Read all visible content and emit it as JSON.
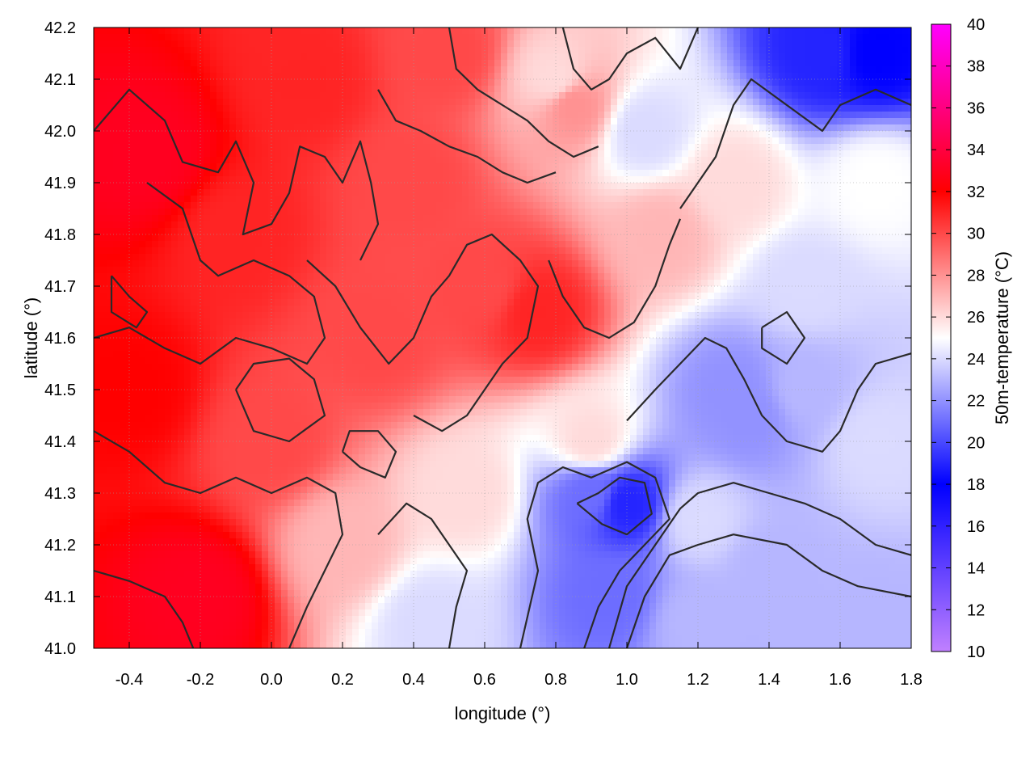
{
  "chart_data": {
    "type": "heatmap",
    "title": "",
    "xlabel": "longitude (°)",
    "ylabel": "latitude (°)",
    "colorbar_label": "50m-temperature (°C)",
    "xlim": [
      -0.5,
      1.8
    ],
    "ylim": [
      41.0,
      42.2
    ],
    "x_ticks": [
      "-0.4",
      "-0.2",
      "0.0",
      "0.2",
      "0.4",
      "0.6",
      "0.8",
      "1.0",
      "1.2",
      "1.4",
      "1.6",
      "1.8"
    ],
    "y_ticks": [
      "41.0",
      "41.1",
      "41.2",
      "41.3",
      "41.4",
      "41.5",
      "41.6",
      "41.7",
      "41.8",
      "41.9",
      "42.0",
      "42.1",
      "42.2"
    ],
    "colorbar_range": [
      10,
      40
    ],
    "colorbar_ticks": [
      "10",
      "12",
      "14",
      "16",
      "18",
      "20",
      "22",
      "24",
      "26",
      "28",
      "30",
      "32",
      "34",
      "36",
      "38",
      "40"
    ],
    "colorscale": [
      {
        "value": 10,
        "color": "#c080ff"
      },
      {
        "value": 18,
        "color": "#0000ff"
      },
      {
        "value": 25,
        "color": "#ffffff"
      },
      {
        "value": 32,
        "color": "#ff0000"
      },
      {
        "value": 40,
        "color": "#ff00ff"
      }
    ],
    "grid": true,
    "contour_color": "#2a2a2a",
    "field_samples": [
      {
        "lon": -0.35,
        "lat": 41.95,
        "t": 33
      },
      {
        "lon": -0.2,
        "lat": 41.1,
        "t": 33
      },
      {
        "lon": -0.4,
        "lat": 41.5,
        "t": 32
      },
      {
        "lon": -0.1,
        "lat": 41.8,
        "t": 31
      },
      {
        "lon": 0.1,
        "lat": 42.1,
        "t": 31
      },
      {
        "lon": 0.4,
        "lat": 41.9,
        "t": 30
      },
      {
        "lon": 0.3,
        "lat": 41.6,
        "t": 30
      },
      {
        "lon": 0.0,
        "lat": 41.4,
        "t": 30
      },
      {
        "lon": 0.6,
        "lat": 41.7,
        "t": 30
      },
      {
        "lon": 0.75,
        "lat": 41.65,
        "t": 31
      },
      {
        "lon": 0.5,
        "lat": 42.15,
        "t": 30
      },
      {
        "lon": 0.85,
        "lat": 42.05,
        "t": 28
      },
      {
        "lon": 0.2,
        "lat": 41.2,
        "t": 27
      },
      {
        "lon": 0.55,
        "lat": 41.3,
        "t": 26
      },
      {
        "lon": 0.45,
        "lat": 41.05,
        "t": 24
      },
      {
        "lon": 0.9,
        "lat": 41.4,
        "t": 26
      },
      {
        "lon": 0.9,
        "lat": 41.3,
        "t": 21
      },
      {
        "lon": 1.0,
        "lat": 41.28,
        "t": 19
      },
      {
        "lon": 0.95,
        "lat": 41.1,
        "t": 21
      },
      {
        "lon": 1.1,
        "lat": 41.8,
        "t": 27
      },
      {
        "lon": 1.05,
        "lat": 42.0,
        "t": 24
      },
      {
        "lon": 0.8,
        "lat": 42.1,
        "t": 26
      },
      {
        "lon": 1.3,
        "lat": 41.5,
        "t": 22
      },
      {
        "lon": 1.35,
        "lat": 41.45,
        "t": 22
      },
      {
        "lon": 1.5,
        "lat": 41.5,
        "t": 23
      },
      {
        "lon": 1.5,
        "lat": 41.7,
        "t": 24
      },
      {
        "lon": 1.3,
        "lat": 41.9,
        "t": 26
      },
      {
        "lon": 1.55,
        "lat": 42.15,
        "t": 19
      },
      {
        "lon": 1.7,
        "lat": 42.15,
        "t": 18
      },
      {
        "lon": 1.7,
        "lat": 41.9,
        "t": 25
      },
      {
        "lon": 1.7,
        "lat": 41.4,
        "t": 24
      },
      {
        "lon": 1.4,
        "lat": 41.15,
        "t": 23
      },
      {
        "lon": 1.7,
        "lat": 41.05,
        "t": 23
      },
      {
        "lon": 1.2,
        "lat": 41.05,
        "t": 23
      },
      {
        "lon": 1.2,
        "lat": 41.25,
        "t": 24
      }
    ],
    "contours": [
      [
        [
          -0.5,
          42.0
        ],
        [
          -0.4,
          42.08
        ],
        [
          -0.3,
          42.02
        ],
        [
          -0.25,
          41.94
        ],
        [
          -0.15,
          41.92
        ],
        [
          -0.1,
          41.98
        ],
        [
          -0.05,
          41.9
        ],
        [
          -0.08,
          41.8
        ],
        [
          0.0,
          41.82
        ],
        [
          0.05,
          41.88
        ],
        [
          0.08,
          41.97
        ],
        [
          0.15,
          41.95
        ],
        [
          0.2,
          41.9
        ],
        [
          0.25,
          41.98
        ],
        [
          0.28,
          41.9
        ],
        [
          0.3,
          41.82
        ],
        [
          0.25,
          41.75
        ]
      ],
      [
        [
          -0.35,
          41.9
        ],
        [
          -0.25,
          41.85
        ],
        [
          -0.2,
          41.75
        ],
        [
          -0.15,
          41.72
        ],
        [
          -0.05,
          41.75
        ],
        [
          0.05,
          41.72
        ],
        [
          0.12,
          41.68
        ],
        [
          0.15,
          41.6
        ],
        [
          0.1,
          41.55
        ],
        [
          0.0,
          41.58
        ],
        [
          -0.1,
          41.6
        ],
        [
          -0.2,
          41.55
        ],
        [
          -0.3,
          41.58
        ],
        [
          -0.4,
          41.62
        ],
        [
          -0.5,
          41.6
        ]
      ],
      [
        [
          0.1,
          41.75
        ],
        [
          0.18,
          41.7
        ],
        [
          0.25,
          41.62
        ],
        [
          0.33,
          41.55
        ],
        [
          0.4,
          41.6
        ],
        [
          0.45,
          41.68
        ],
        [
          0.5,
          41.72
        ],
        [
          0.55,
          41.78
        ],
        [
          0.62,
          41.8
        ],
        [
          0.7,
          41.75
        ],
        [
          0.75,
          41.7
        ],
        [
          0.72,
          41.6
        ],
        [
          0.65,
          41.55
        ],
        [
          0.6,
          41.5
        ],
        [
          0.55,
          41.45
        ],
        [
          0.48,
          41.42
        ],
        [
          0.4,
          41.45
        ]
      ],
      [
        [
          -0.1,
          41.5
        ],
        [
          -0.05,
          41.42
        ],
        [
          0.05,
          41.4
        ],
        [
          0.15,
          41.45
        ],
        [
          0.12,
          41.52
        ],
        [
          0.05,
          41.56
        ],
        [
          -0.05,
          41.55
        ],
        [
          -0.1,
          41.5
        ]
      ],
      [
        [
          -0.5,
          41.42
        ],
        [
          -0.4,
          41.38
        ],
        [
          -0.3,
          41.32
        ],
        [
          -0.2,
          41.3
        ],
        [
          -0.1,
          41.33
        ],
        [
          0.0,
          41.3
        ],
        [
          0.1,
          41.33
        ],
        [
          0.18,
          41.3
        ],
        [
          0.2,
          41.22
        ],
        [
          0.15,
          41.15
        ],
        [
          0.1,
          41.08
        ],
        [
          0.05,
          41.0
        ]
      ],
      [
        [
          -0.5,
          41.15
        ],
        [
          -0.4,
          41.13
        ],
        [
          -0.3,
          41.1
        ],
        [
          -0.25,
          41.05
        ],
        [
          -0.22,
          41.0
        ]
      ],
      [
        [
          0.3,
          41.22
        ],
        [
          0.38,
          41.28
        ],
        [
          0.45,
          41.25
        ],
        [
          0.5,
          41.2
        ],
        [
          0.55,
          41.15
        ],
        [
          0.52,
          41.08
        ],
        [
          0.5,
          41.0
        ]
      ],
      [
        [
          0.7,
          41.0
        ],
        [
          0.75,
          41.15
        ],
        [
          0.72,
          41.25
        ],
        [
          0.75,
          41.32
        ],
        [
          0.82,
          41.35
        ],
        [
          0.9,
          41.33
        ],
        [
          1.0,
          41.36
        ],
        [
          1.08,
          41.33
        ],
        [
          1.12,
          41.25
        ],
        [
          1.05,
          41.2
        ],
        [
          0.98,
          41.15
        ],
        [
          0.92,
          41.08
        ],
        [
          0.88,
          41.0
        ]
      ],
      [
        [
          0.86,
          41.28
        ],
        [
          0.92,
          41.3
        ],
        [
          0.98,
          41.33
        ],
        [
          1.05,
          41.32
        ],
        [
          1.07,
          41.26
        ],
        [
          1.0,
          41.22
        ],
        [
          0.93,
          41.24
        ],
        [
          0.86,
          41.28
        ]
      ],
      [
        [
          0.95,
          41.0
        ],
        [
          1.0,
          41.12
        ],
        [
          1.08,
          41.2
        ],
        [
          1.15,
          41.27
        ],
        [
          1.2,
          41.3
        ],
        [
          1.3,
          41.32
        ],
        [
          1.4,
          41.3
        ],
        [
          1.5,
          41.28
        ],
        [
          1.6,
          41.25
        ],
        [
          1.7,
          41.2
        ],
        [
          1.8,
          41.18
        ]
      ],
      [
        [
          1.0,
          41.0
        ],
        [
          1.05,
          41.1
        ],
        [
          1.12,
          41.18
        ],
        [
          1.2,
          41.2
        ],
        [
          1.3,
          41.22
        ],
        [
          1.45,
          41.2
        ],
        [
          1.55,
          41.15
        ],
        [
          1.65,
          41.12
        ],
        [
          1.8,
          41.1
        ]
      ],
      [
        [
          1.0,
          41.44
        ],
        [
          1.08,
          41.5
        ],
        [
          1.15,
          41.55
        ],
        [
          1.22,
          41.6
        ],
        [
          1.28,
          41.58
        ],
        [
          1.33,
          41.52
        ],
        [
          1.38,
          41.45
        ],
        [
          1.45,
          41.4
        ],
        [
          1.55,
          41.38
        ],
        [
          1.6,
          41.42
        ],
        [
          1.65,
          41.5
        ],
        [
          1.7,
          41.55
        ],
        [
          1.8,
          41.57
        ]
      ],
      [
        [
          1.15,
          41.85
        ],
        [
          1.2,
          41.9
        ],
        [
          1.25,
          41.95
        ],
        [
          1.3,
          42.05
        ],
        [
          1.35,
          42.1
        ],
        [
          1.45,
          42.05
        ],
        [
          1.55,
          42.0
        ],
        [
          1.6,
          42.05
        ],
        [
          1.7,
          42.08
        ],
        [
          1.8,
          42.05
        ]
      ],
      [
        [
          0.82,
          42.2
        ],
        [
          0.85,
          42.12
        ],
        [
          0.9,
          42.08
        ],
        [
          0.95,
          42.1
        ],
        [
          1.0,
          42.15
        ],
        [
          1.08,
          42.18
        ],
        [
          1.15,
          42.12
        ],
        [
          1.2,
          42.2
        ]
      ],
      [
        [
          0.5,
          42.2
        ],
        [
          0.52,
          42.12
        ],
        [
          0.58,
          42.08
        ],
        [
          0.65,
          42.05
        ],
        [
          0.72,
          42.02
        ],
        [
          0.78,
          41.98
        ],
        [
          0.85,
          41.95
        ],
        [
          0.92,
          41.97
        ]
      ],
      [
        [
          0.3,
          42.08
        ],
        [
          0.35,
          42.02
        ],
        [
          0.42,
          42.0
        ],
        [
          0.5,
          41.97
        ],
        [
          0.58,
          41.95
        ],
        [
          0.65,
          41.92
        ],
        [
          0.72,
          41.9
        ],
        [
          0.8,
          41.92
        ]
      ],
      [
        [
          0.78,
          41.75
        ],
        [
          0.82,
          41.68
        ],
        [
          0.88,
          41.62
        ],
        [
          0.95,
          41.6
        ],
        [
          1.02,
          41.63
        ],
        [
          1.08,
          41.7
        ],
        [
          1.12,
          41.78
        ],
        [
          1.15,
          41.83
        ]
      ],
      [
        [
          0.2,
          41.38
        ],
        [
          0.25,
          41.35
        ],
        [
          0.32,
          41.33
        ],
        [
          0.35,
          41.38
        ],
        [
          0.3,
          41.42
        ],
        [
          0.22,
          41.42
        ],
        [
          0.2,
          41.38
        ]
      ],
      [
        [
          1.38,
          41.62
        ],
        [
          1.45,
          41.65
        ],
        [
          1.5,
          41.6
        ],
        [
          1.45,
          41.55
        ],
        [
          1.38,
          41.58
        ],
        [
          1.38,
          41.62
        ]
      ],
      [
        [
          -0.45,
          41.72
        ],
        [
          -0.4,
          41.68
        ],
        [
          -0.35,
          41.65
        ],
        [
          -0.38,
          41.62
        ],
        [
          -0.45,
          41.65
        ],
        [
          -0.45,
          41.72
        ]
      ]
    ],
    "legend": "colorbar-right"
  }
}
